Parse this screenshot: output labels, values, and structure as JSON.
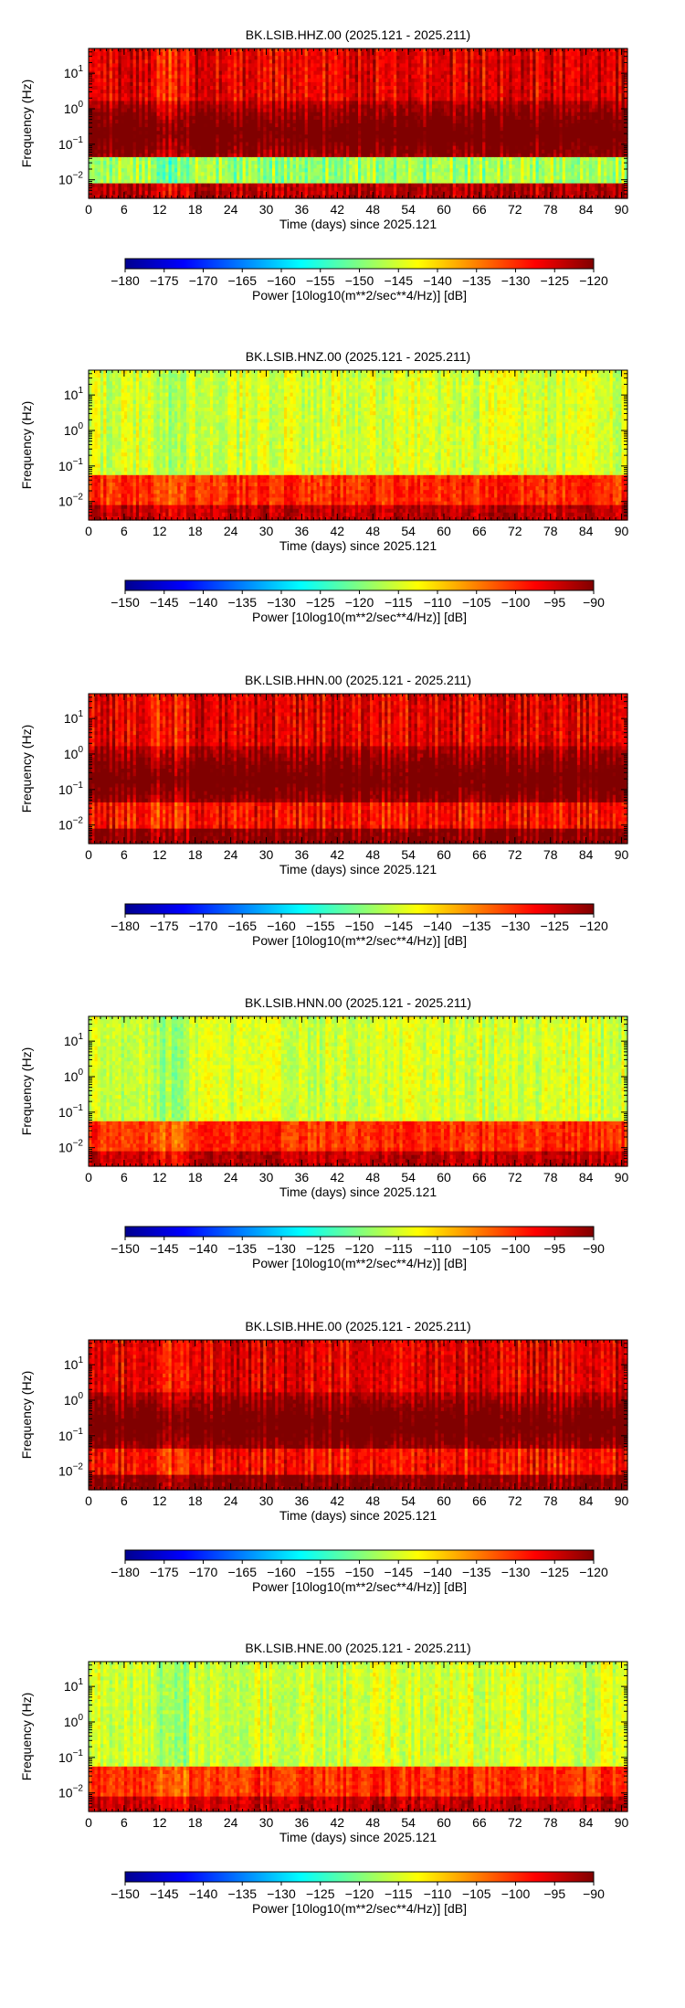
{
  "chart_data": [
    {
      "type": "heatmap",
      "title": "BK.LSIB.HHZ.00 (2025.121 - 2025.211)",
      "xlabel": "Time (days) since 2025.121",
      "ylabel": "Frequency (Hz)",
      "x_ticks": [
        "0",
        "6",
        "12",
        "18",
        "24",
        "30",
        "36",
        "42",
        "48",
        "54",
        "60",
        "66",
        "72",
        "78",
        "84",
        "90"
      ],
      "xlim": [
        0,
        91
      ],
      "y_scale": "log",
      "y_ticks": [
        "10^{1}",
        "10^{0}",
        "10^{-1}",
        "10^{-2}"
      ],
      "ylim": [
        0.003,
        50
      ],
      "colorbar": {
        "label": "Power [10log10(m**2/sec**4/Hz)] [dB]",
        "range": [
          -180,
          -120
        ],
        "ticks": [
          "-180",
          "-175",
          "-170",
          "-165",
          "-160",
          "-155",
          "-150",
          "-145",
          "-140",
          "-135",
          "-130",
          "-125",
          "-120"
        ],
        "colormap": "jet"
      },
      "levels": {
        "high_band": -128,
        "micro_band": -118,
        "low_band": -150,
        "deep": -125
      }
    },
    {
      "type": "heatmap",
      "title": "BK.LSIB.HNZ.00 (2025.121 - 2025.211)",
      "xlabel": "Time (days) since 2025.121",
      "ylabel": "Frequency (Hz)",
      "x_ticks": [
        "0",
        "6",
        "12",
        "18",
        "24",
        "30",
        "36",
        "42",
        "48",
        "54",
        "60",
        "66",
        "72",
        "78",
        "84",
        "90"
      ],
      "xlim": [
        0,
        91
      ],
      "y_scale": "log",
      "y_ticks": [
        "10^{1}",
        "10^{0}",
        "10^{-1}",
        "10^{-2}"
      ],
      "ylim": [
        0.003,
        50
      ],
      "colorbar": {
        "label": "Power [10log10(m**2/sec**4/Hz)] [dB]",
        "range": [
          -150,
          -90
        ],
        "ticks": [
          "-150",
          "-145",
          "-140",
          "-135",
          "-130",
          "-125",
          "-120",
          "-115",
          "-110",
          "-105",
          "-100",
          "-95",
          "-90"
        ],
        "colormap": "jet"
      },
      "levels": {
        "high_band": -115,
        "micro_band": -113,
        "low_band": -100,
        "deep": -92
      }
    },
    {
      "type": "heatmap",
      "title": "BK.LSIB.HHN.00 (2025.121 - 2025.211)",
      "xlabel": "Time (days) since 2025.121",
      "ylabel": "Frequency (Hz)",
      "x_ticks": [
        "0",
        "6",
        "12",
        "18",
        "24",
        "30",
        "36",
        "42",
        "48",
        "54",
        "60",
        "66",
        "72",
        "78",
        "84",
        "90"
      ],
      "xlim": [
        0,
        91
      ],
      "y_scale": "log",
      "y_ticks": [
        "10^{1}",
        "10^{0}",
        "10^{-1}",
        "10^{-2}"
      ],
      "ylim": [
        0.003,
        50
      ],
      "colorbar": {
        "label": "Power [10log10(m**2/sec**4/Hz)] [dB]",
        "range": [
          -180,
          -120
        ],
        "ticks": [
          "-180",
          "-175",
          "-170",
          "-165",
          "-160",
          "-155",
          "-150",
          "-145",
          "-140",
          "-135",
          "-130",
          "-125",
          "-120"
        ],
        "colormap": "jet"
      },
      "levels": {
        "high_band": -128,
        "micro_band": -118,
        "low_band": -130,
        "deep": -122
      }
    },
    {
      "type": "heatmap",
      "title": "BK.LSIB.HNN.00 (2025.121 - 2025.211)",
      "xlabel": "Time (days) since 2025.121",
      "ylabel": "Frequency (Hz)",
      "x_ticks": [
        "0",
        "6",
        "12",
        "18",
        "24",
        "30",
        "36",
        "42",
        "48",
        "54",
        "60",
        "66",
        "72",
        "78",
        "84",
        "90"
      ],
      "xlim": [
        0,
        91
      ],
      "y_scale": "log",
      "y_ticks": [
        "10^{1}",
        "10^{0}",
        "10^{-1}",
        "10^{-2}"
      ],
      "ylim": [
        0.003,
        50
      ],
      "colorbar": {
        "label": "Power [10log10(m**2/sec**4/Hz)] [dB]",
        "range": [
          -150,
          -90
        ],
        "ticks": [
          "-150",
          "-145",
          "-140",
          "-135",
          "-130",
          "-125",
          "-120",
          "-115",
          "-110",
          "-105",
          "-100",
          "-95",
          "-90"
        ],
        "colormap": "jet"
      },
      "levels": {
        "high_band": -115,
        "micro_band": -113,
        "low_band": -100,
        "deep": -92
      }
    },
    {
      "type": "heatmap",
      "title": "BK.LSIB.HHE.00 (2025.121 - 2025.211)",
      "xlabel": "Time (days) since 2025.121",
      "ylabel": "Frequency (Hz)",
      "x_ticks": [
        "0",
        "6",
        "12",
        "18",
        "24",
        "30",
        "36",
        "42",
        "48",
        "54",
        "60",
        "66",
        "72",
        "78",
        "84",
        "90"
      ],
      "xlim": [
        0,
        91
      ],
      "y_scale": "log",
      "y_ticks": [
        "10^{1}",
        "10^{0}",
        "10^{-1}",
        "10^{-2}"
      ],
      "ylim": [
        0.003,
        50
      ],
      "colorbar": {
        "label": "Power [10log10(m**2/sec**4/Hz)] [dB]",
        "range": [
          -180,
          -120
        ],
        "ticks": [
          "-180",
          "-175",
          "-170",
          "-165",
          "-160",
          "-155",
          "-150",
          "-145",
          "-140",
          "-135",
          "-130",
          "-125",
          "-120"
        ],
        "colormap": "jet"
      },
      "levels": {
        "high_band": -128,
        "micro_band": -118,
        "low_band": -130,
        "deep": -122
      }
    },
    {
      "type": "heatmap",
      "title": "BK.LSIB.HNE.00 (2025.121 - 2025.211)",
      "xlabel": "Time (days) since 2025.121",
      "ylabel": "Frequency (Hz)",
      "x_ticks": [
        "0",
        "6",
        "12",
        "18",
        "24",
        "30",
        "36",
        "42",
        "48",
        "54",
        "60",
        "66",
        "72",
        "78",
        "84",
        "90"
      ],
      "xlim": [
        0,
        91
      ],
      "y_scale": "log",
      "y_ticks": [
        "10^{1}",
        "10^{0}",
        "10^{-1}",
        "10^{-2}"
      ],
      "ylim": [
        0.003,
        50
      ],
      "colorbar": {
        "label": "Power [10log10(m**2/sec**4/Hz)] [dB]",
        "range": [
          -150,
          -90
        ],
        "ticks": [
          "-150",
          "-145",
          "-140",
          "-135",
          "-130",
          "-125",
          "-120",
          "-115",
          "-110",
          "-105",
          "-100",
          "-95",
          "-90"
        ],
        "colormap": "jet"
      },
      "levels": {
        "high_band": -115,
        "micro_band": -113,
        "low_band": -100,
        "deep": -92
      }
    }
  ]
}
